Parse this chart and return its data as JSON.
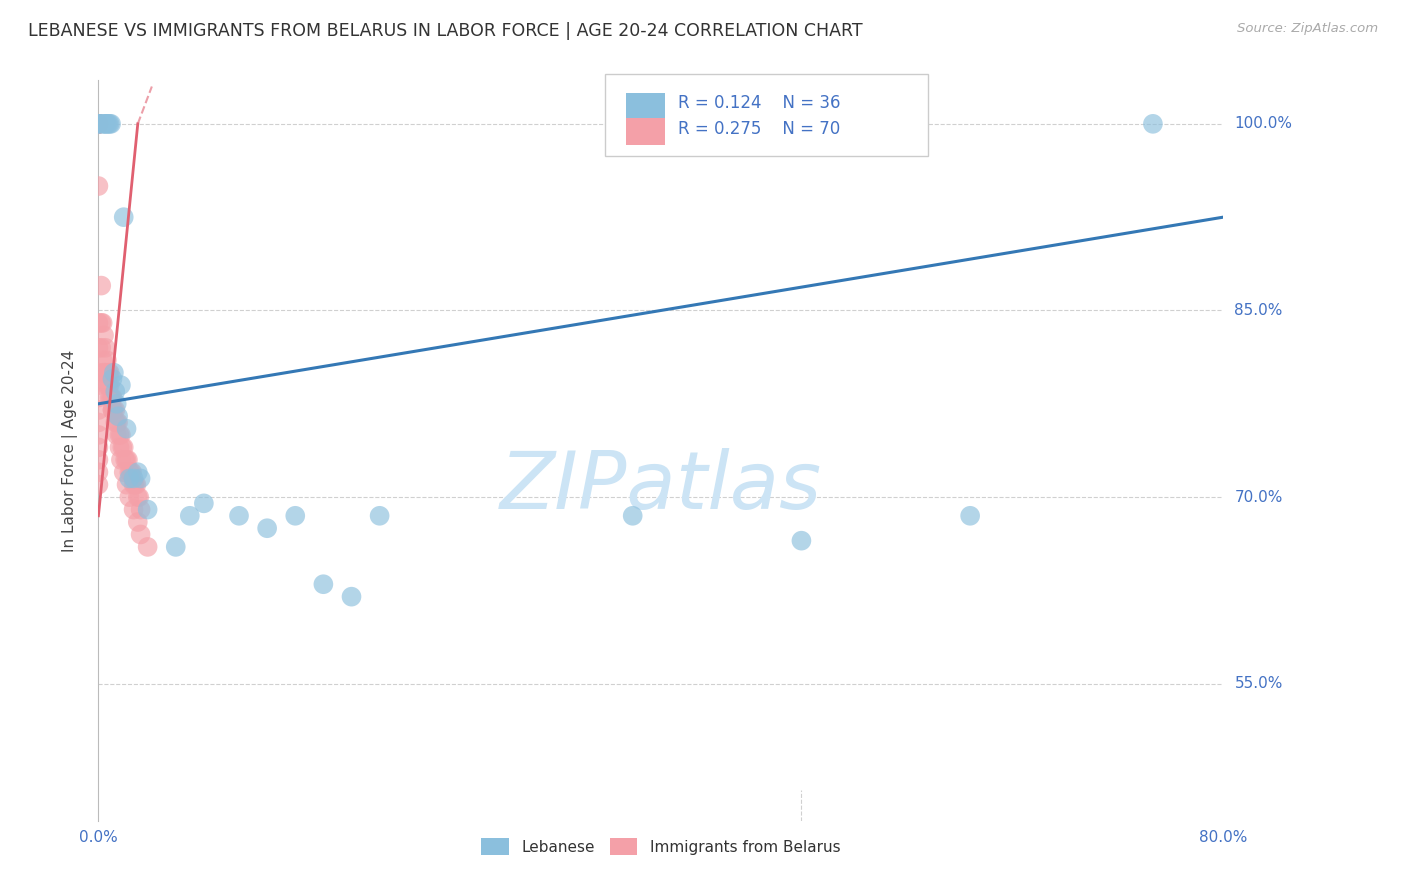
{
  "title": "LEBANESE VS IMMIGRANTS FROM BELARUS IN LABOR FORCE | AGE 20-24 CORRELATION CHART",
  "source": "Source: ZipAtlas.com",
  "ylabel": "In Labor Force | Age 20-24",
  "ytick_labels": [
    "100.0%",
    "85.0%",
    "70.0%",
    "55.0%"
  ],
  "ytick_values": [
    1.0,
    0.85,
    0.7,
    0.55
  ],
  "xlim": [
    0.0,
    0.8
  ],
  "ylim": [
    0.44,
    1.035
  ],
  "xtick_left": "0.0%",
  "xtick_right": "80.0%",
  "legend_r1": "R = 0.124",
  "legend_n1": "N = 36",
  "legend_r2": "R = 0.275",
  "legend_n2": "N = 70",
  "blue_color": "#8bbfdd",
  "pink_color": "#f4a0a8",
  "blue_line_color": "#3478b5",
  "pink_line_color": "#e06070",
  "grid_color": "#d0d0d0",
  "title_color": "#333333",
  "tick_color": "#4472c4",
  "watermark_color": "#cce4f5",
  "blue_dots_x": [
    0.0,
    0.0,
    0.0,
    0.003,
    0.004,
    0.005,
    0.006,
    0.007,
    0.008,
    0.009,
    0.01,
    0.011,
    0.012,
    0.013,
    0.014,
    0.016,
    0.018,
    0.02,
    0.022,
    0.025,
    0.028,
    0.03,
    0.035,
    0.055,
    0.065,
    0.075,
    0.1,
    0.12,
    0.14,
    0.16,
    0.18,
    0.2,
    0.38,
    0.5,
    0.62,
    0.75
  ],
  "blue_dots_y": [
    1.0,
    1.0,
    1.0,
    1.0,
    1.0,
    1.0,
    1.0,
    1.0,
    1.0,
    1.0,
    0.795,
    0.8,
    0.785,
    0.775,
    0.765,
    0.79,
    0.925,
    0.755,
    0.715,
    0.715,
    0.72,
    0.715,
    0.69,
    0.66,
    0.685,
    0.695,
    0.685,
    0.675,
    0.685,
    0.63,
    0.62,
    0.685,
    0.685,
    0.665,
    0.685,
    1.0
  ],
  "pink_dots_x": [
    0.0,
    0.0,
    0.0,
    0.0,
    0.0,
    0.0,
    0.0,
    0.002,
    0.002,
    0.003,
    0.004,
    0.005,
    0.006,
    0.007,
    0.008,
    0.008,
    0.009,
    0.01,
    0.01,
    0.011,
    0.012,
    0.013,
    0.014,
    0.015,
    0.016,
    0.017,
    0.018,
    0.019,
    0.02,
    0.021,
    0.022,
    0.023,
    0.024,
    0.025,
    0.026,
    0.027,
    0.028,
    0.029,
    0.03,
    0.0,
    0.0,
    0.002,
    0.003,
    0.004,
    0.005,
    0.006,
    0.007,
    0.008,
    0.01,
    0.012,
    0.013,
    0.015,
    0.016,
    0.018,
    0.02,
    0.022,
    0.025,
    0.028,
    0.03,
    0.035,
    0.0,
    0.0,
    0.0,
    0.0,
    0.0,
    0.0,
    0.0,
    0.0,
    0.0,
    0.0
  ],
  "pink_dots_y": [
    1.0,
    1.0,
    1.0,
    1.0,
    1.0,
    1.0,
    0.95,
    0.87,
    0.84,
    0.84,
    0.83,
    0.82,
    0.81,
    0.8,
    0.8,
    0.79,
    0.78,
    0.78,
    0.77,
    0.77,
    0.77,
    0.76,
    0.76,
    0.75,
    0.75,
    0.74,
    0.74,
    0.73,
    0.73,
    0.73,
    0.72,
    0.72,
    0.72,
    0.71,
    0.71,
    0.71,
    0.7,
    0.7,
    0.69,
    0.84,
    0.82,
    0.82,
    0.81,
    0.8,
    0.8,
    0.79,
    0.79,
    0.78,
    0.77,
    0.76,
    0.75,
    0.74,
    0.73,
    0.72,
    0.71,
    0.7,
    0.69,
    0.68,
    0.67,
    0.66,
    0.8,
    0.79,
    0.78,
    0.77,
    0.76,
    0.75,
    0.74,
    0.73,
    0.72,
    0.71
  ],
  "blue_line_x0": 0.0,
  "blue_line_y0": 0.775,
  "blue_line_x1": 0.8,
  "blue_line_y1": 0.925,
  "pink_line_x0": 0.0,
  "pink_line_y0": 0.685,
  "pink_line_x1": 0.028,
  "pink_line_y1": 1.0,
  "pink_line_dash_x0": 0.028,
  "pink_line_dash_y0": 1.0,
  "pink_line_dash_x1": 0.038,
  "pink_line_dash_y1": 1.03
}
